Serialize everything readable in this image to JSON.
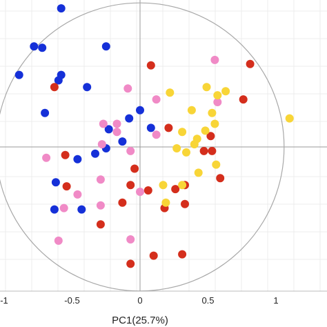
{
  "chart_data": {
    "type": "scatter",
    "xlabel": "PC1(25.7%)",
    "ylabel": "",
    "xlim": [
      -1.04,
      1.2
    ],
    "ylim": [
      -1.05,
      1.1
    ],
    "x_ticks": [
      -1,
      -0.5,
      0,
      0.5,
      1
    ],
    "x_tick_labels": [
      "-1",
      "-0.5",
      "0",
      "0.5",
      "1"
    ],
    "grid": true,
    "unit_circle": true,
    "series": [
      {
        "color": "#1530d8",
        "points": [
          [
            -0.58,
            1.02
          ],
          [
            -0.78,
            0.74
          ],
          [
            -0.72,
            0.73
          ],
          [
            -0.25,
            0.74
          ],
          [
            -0.89,
            0.53
          ],
          [
            -0.58,
            0.53
          ],
          [
            -0.6,
            0.49
          ],
          [
            -0.39,
            0.44
          ],
          [
            -0.7,
            0.25
          ],
          [
            0.0,
            0.27
          ],
          [
            -0.08,
            0.21
          ],
          [
            -0.23,
            0.13
          ],
          [
            0.08,
            0.14
          ],
          [
            -0.13,
            0.04
          ],
          [
            -0.25,
            -0.01
          ],
          [
            -0.33,
            -0.05
          ],
          [
            -0.46,
            -0.09
          ],
          [
            -0.62,
            -0.26
          ],
          [
            -0.63,
            -0.46
          ],
          [
            -0.43,
            -0.46
          ]
        ]
      },
      {
        "color": "#d42e1c",
        "points": [
          [
            0.08,
            0.6
          ],
          [
            0.81,
            0.61
          ],
          [
            -0.63,
            0.44
          ],
          [
            0.76,
            0.35
          ],
          [
            0.21,
            0.14
          ],
          [
            0.52,
            0.08
          ],
          [
            0.53,
            -0.03
          ],
          [
            0.47,
            -0.03
          ],
          [
            -0.55,
            -0.06
          ],
          [
            -0.04,
            -0.16
          ],
          [
            0.59,
            -0.23
          ],
          [
            -0.07,
            -0.28
          ],
          [
            0.33,
            -0.28
          ],
          [
            -0.54,
            -0.29
          ],
          [
            0.06,
            -0.32
          ],
          [
            0.26,
            -0.31
          ],
          [
            -0.13,
            -0.41
          ],
          [
            0.33,
            -0.42
          ],
          [
            0.18,
            -0.45
          ],
          [
            -0.29,
            -0.57
          ],
          [
            0.1,
            -0.8
          ],
          [
            0.31,
            -0.79
          ],
          [
            -0.07,
            -0.86
          ]
        ]
      },
      {
        "color": "#f08ac6",
        "points": [
          [
            0.55,
            0.64
          ],
          [
            -0.09,
            0.43
          ],
          [
            0.12,
            0.35
          ],
          [
            0.57,
            0.33
          ],
          [
            -0.27,
            0.17
          ],
          [
            -0.17,
            0.17
          ],
          [
            0.12,
            0.09
          ],
          [
            -0.17,
            0.11
          ],
          [
            -0.28,
            0.02
          ],
          [
            -0.07,
            -0.03
          ],
          [
            -0.69,
            -0.08
          ],
          [
            -0.29,
            -0.24
          ],
          [
            -0.46,
            -0.35
          ],
          [
            0.0,
            -0.33
          ],
          [
            -0.56,
            -0.45
          ],
          [
            -0.29,
            -0.43
          ],
          [
            -0.07,
            -0.68
          ],
          [
            -0.6,
            -0.69
          ]
        ]
      },
      {
        "color": "#f8d537",
        "points": [
          [
            0.49,
            0.44
          ],
          [
            0.63,
            0.41
          ],
          [
            0.22,
            0.4
          ],
          [
            0.57,
            0.38
          ],
          [
            0.53,
            0.25
          ],
          [
            0.38,
            0.27
          ],
          [
            0.55,
            0.17
          ],
          [
            1.1,
            0.21
          ],
          [
            0.31,
            0.11
          ],
          [
            0.48,
            0.12
          ],
          [
            0.42,
            0.06
          ],
          [
            0.27,
            -0.01
          ],
          [
            0.4,
            0.02
          ],
          [
            0.34,
            -0.04
          ],
          [
            0.56,
            -0.13
          ],
          [
            0.43,
            -0.19
          ],
          [
            0.17,
            -0.28
          ],
          [
            0.31,
            -0.28
          ],
          [
            0.19,
            -0.41
          ]
        ]
      }
    ]
  }
}
